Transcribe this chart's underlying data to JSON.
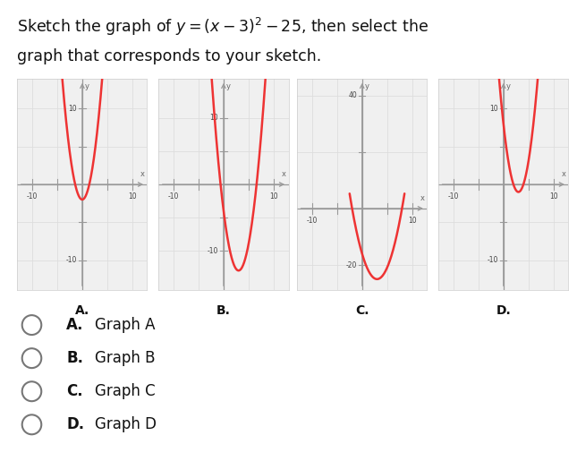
{
  "curve_color": "#ee3333",
  "axis_color": "#999999",
  "grid_color": "#dddddd",
  "bg_color": "#ffffff",
  "panel_bg": "#f0f0f0",
  "panel_border": "#cccccc",
  "graphs": [
    {
      "label": "A.",
      "vertex_x": 0,
      "vertex_y": -2,
      "scale": 1.0,
      "xlim": [
        -13,
        13
      ],
      "ylim": [
        -14,
        14
      ],
      "xticks": [
        -10,
        -5,
        5,
        10
      ],
      "yticks": [
        -10,
        -5,
        5,
        10
      ],
      "xtick_labels": {
        "-10": "-10",
        "10": "10"
      },
      "ytick_labels": {
        "10": "10",
        "-10": "-10"
      },
      "curve_x1": -4.5,
      "curve_x2": 4.5
    },
    {
      "label": "B.",
      "vertex_x": 3,
      "vertex_y": -13,
      "scale": 1.0,
      "xlim": [
        -13,
        13
      ],
      "ylim": [
        -16,
        16
      ],
      "xticks": [
        -10,
        -5,
        5,
        10
      ],
      "yticks": [
        -10,
        -5,
        5,
        10
      ],
      "xtick_labels": {
        "-10": "-10",
        "10": "10"
      },
      "ytick_labels": {
        "10": "10",
        "-10": "-10"
      },
      "curve_x1": -3,
      "curve_x2": 9
    },
    {
      "label": "C.",
      "vertex_x": 3,
      "vertex_y": -25,
      "scale": 1.0,
      "xlim": [
        -13,
        13
      ],
      "ylim": [
        -29,
        46
      ],
      "xticks": [
        -10,
        -5,
        5,
        10
      ],
      "yticks": [
        -20,
        20,
        40
      ],
      "xtick_labels": {
        "-10": "-10",
        "10": "10"
      },
      "ytick_labels": {
        "40": "40",
        "-20": "-20"
      },
      "curve_x1": -2.5,
      "curve_x2": 8.5
    },
    {
      "label": "D.",
      "vertex_x": 3,
      "vertex_y": -1,
      "scale": 1.0,
      "xlim": [
        -13,
        13
      ],
      "ylim": [
        -14,
        14
      ],
      "xticks": [
        -10,
        -5,
        5,
        10
      ],
      "yticks": [
        -10,
        -5,
        5,
        10
      ],
      "xtick_labels": {
        "-10": "-10",
        "10": "10"
      },
      "ytick_labels": {
        "10": "10",
        "-10": "-10"
      },
      "curve_x1": -1,
      "curve_x2": 7
    }
  ],
  "choices": [
    {
      "bold": "A.",
      "text": "Graph A"
    },
    {
      "bold": "B.",
      "text": "Graph B"
    },
    {
      "bold": "C.",
      "text": "Graph C"
    },
    {
      "bold": "D.",
      "text": "Graph D"
    }
  ]
}
